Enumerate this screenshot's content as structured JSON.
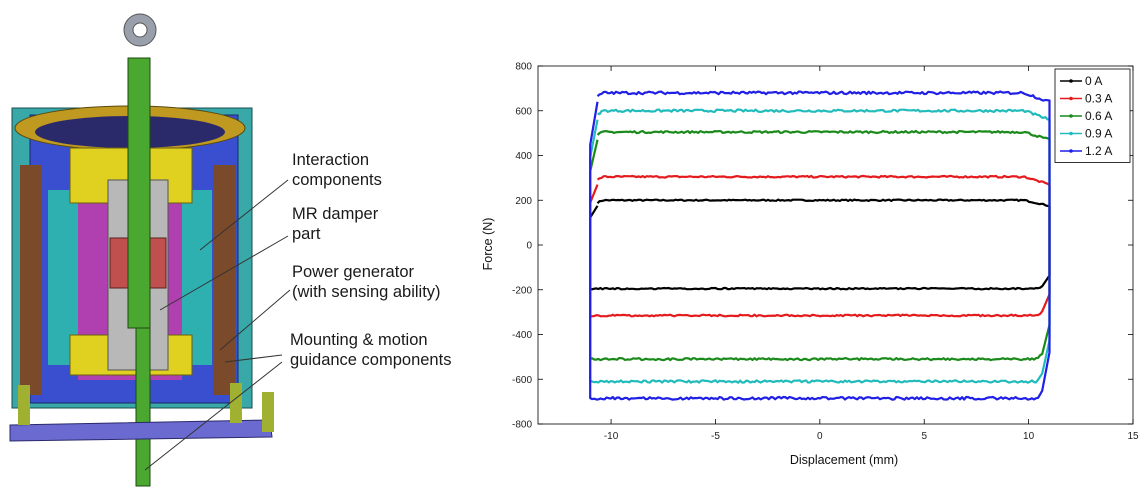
{
  "diagram": {
    "labels": [
      {
        "id": "interaction",
        "lines": [
          "Interaction",
          "components"
        ]
      },
      {
        "id": "mr",
        "lines": [
          "MR damper",
          "part"
        ]
      },
      {
        "id": "power",
        "lines": [
          "Power generator",
          "(with sensing ability)"
        ]
      },
      {
        "id": "mounting",
        "lines": [
          "Mounting & motion",
          "guidance components"
        ]
      }
    ]
  },
  "chart_data": {
    "type": "line",
    "title": "",
    "xlabel": "Displacement (mm)",
    "ylabel": "Force (N)",
    "xlim": [
      -13.5,
      15
    ],
    "ylim": [
      -800,
      800
    ],
    "xticks": [
      -10,
      -5,
      0,
      5,
      10,
      15
    ],
    "yticks": [
      -800,
      -600,
      -400,
      -200,
      0,
      200,
      400,
      600,
      800
    ],
    "grid": false,
    "legend_position": "top-right",
    "x_range": [
      -11,
      11
    ],
    "series": [
      {
        "name": "0 A",
        "color": "#000000",
        "upper": 200,
        "lower": -195,
        "upper_start": 175
      },
      {
        "name": "0.3 A",
        "color": "#e41a1c",
        "upper": 305,
        "lower": -315,
        "upper_start": 270
      },
      {
        "name": "0.6 A",
        "color": "#1a8a1a",
        "upper": 505,
        "lower": -510,
        "upper_start": 470
      },
      {
        "name": "0.9 A",
        "color": "#22bbbb",
        "upper": 600,
        "lower": -610,
        "upper_start": 560
      },
      {
        "name": "1.2 A",
        "color": "#1f1fe6",
        "upper": 680,
        "lower": -685,
        "upper_start": 640
      }
    ]
  }
}
